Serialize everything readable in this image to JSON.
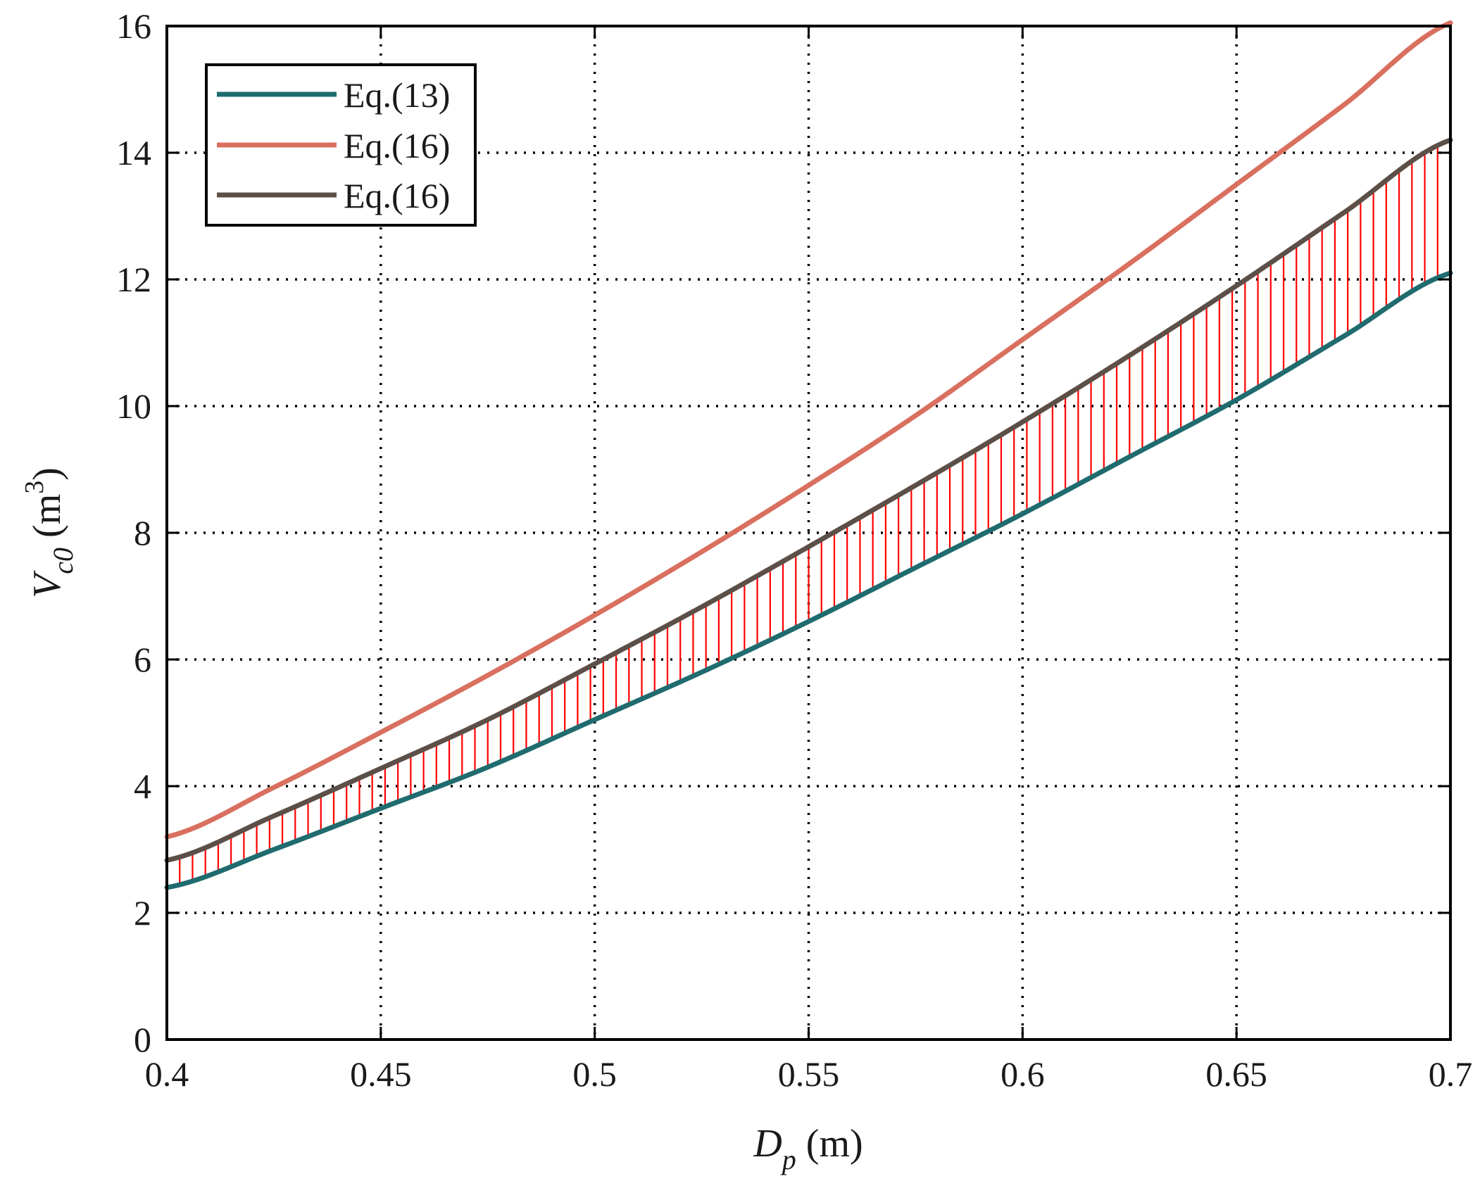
{
  "chart_data": {
    "type": "line",
    "xlim": [
      0.4,
      0.7
    ],
    "ylim": [
      0,
      16
    ],
    "x_ticks": [
      0.4,
      0.45,
      0.5,
      0.55,
      0.6,
      0.65,
      0.7
    ],
    "x_tick_labels": [
      "0.4",
      "0.45",
      "0.5",
      "0.55",
      "0.6",
      "0.65",
      "0.7"
    ],
    "y_ticks": [
      0,
      2,
      4,
      6,
      8,
      10,
      12,
      14,
      16
    ],
    "y_tick_labels": [
      "0",
      "2",
      "4",
      "6",
      "8",
      "10",
      "12",
      "14",
      "16"
    ],
    "xlabel": {
      "main": "D",
      "sub": "p",
      "unit": " (m)"
    },
    "ylabel": {
      "main": "V",
      "sub": "c0",
      "unit_open": " (m",
      "unit_sup": "3",
      "unit_close": ")"
    },
    "grid": true,
    "legend_position": "top-left",
    "x": [
      0.4,
      0.425,
      0.45,
      0.475,
      0.5,
      0.525,
      0.55,
      0.575,
      0.6,
      0.625,
      0.65,
      0.675,
      0.7
    ],
    "series": [
      {
        "name": "Eq.(13)",
        "color": "#1f6b6e",
        "values": [
          2.4,
          3.0,
          3.65,
          4.3,
          5.05,
          5.8,
          6.6,
          7.45,
          8.3,
          9.2,
          10.1,
          11.1,
          12.1
        ]
      },
      {
        "name": "Eq.(16)",
        "color": "#d9705f",
        "values": [
          3.2,
          3.98,
          4.85,
          5.75,
          6.7,
          7.7,
          8.75,
          9.85,
          11.05,
          12.25,
          13.5,
          14.75,
          16.05
        ]
      },
      {
        "name": "Eq.(16)",
        "color": "#5c4f47",
        "values": [
          2.83,
          3.53,
          4.28,
          5.05,
          5.93,
          6.83,
          7.78,
          8.75,
          9.75,
          10.8,
          11.9,
          13.05,
          14.2
        ]
      }
    ],
    "shaded_band": {
      "lower_series": 0,
      "upper_series": 2,
      "color": "#ff0000"
    }
  }
}
